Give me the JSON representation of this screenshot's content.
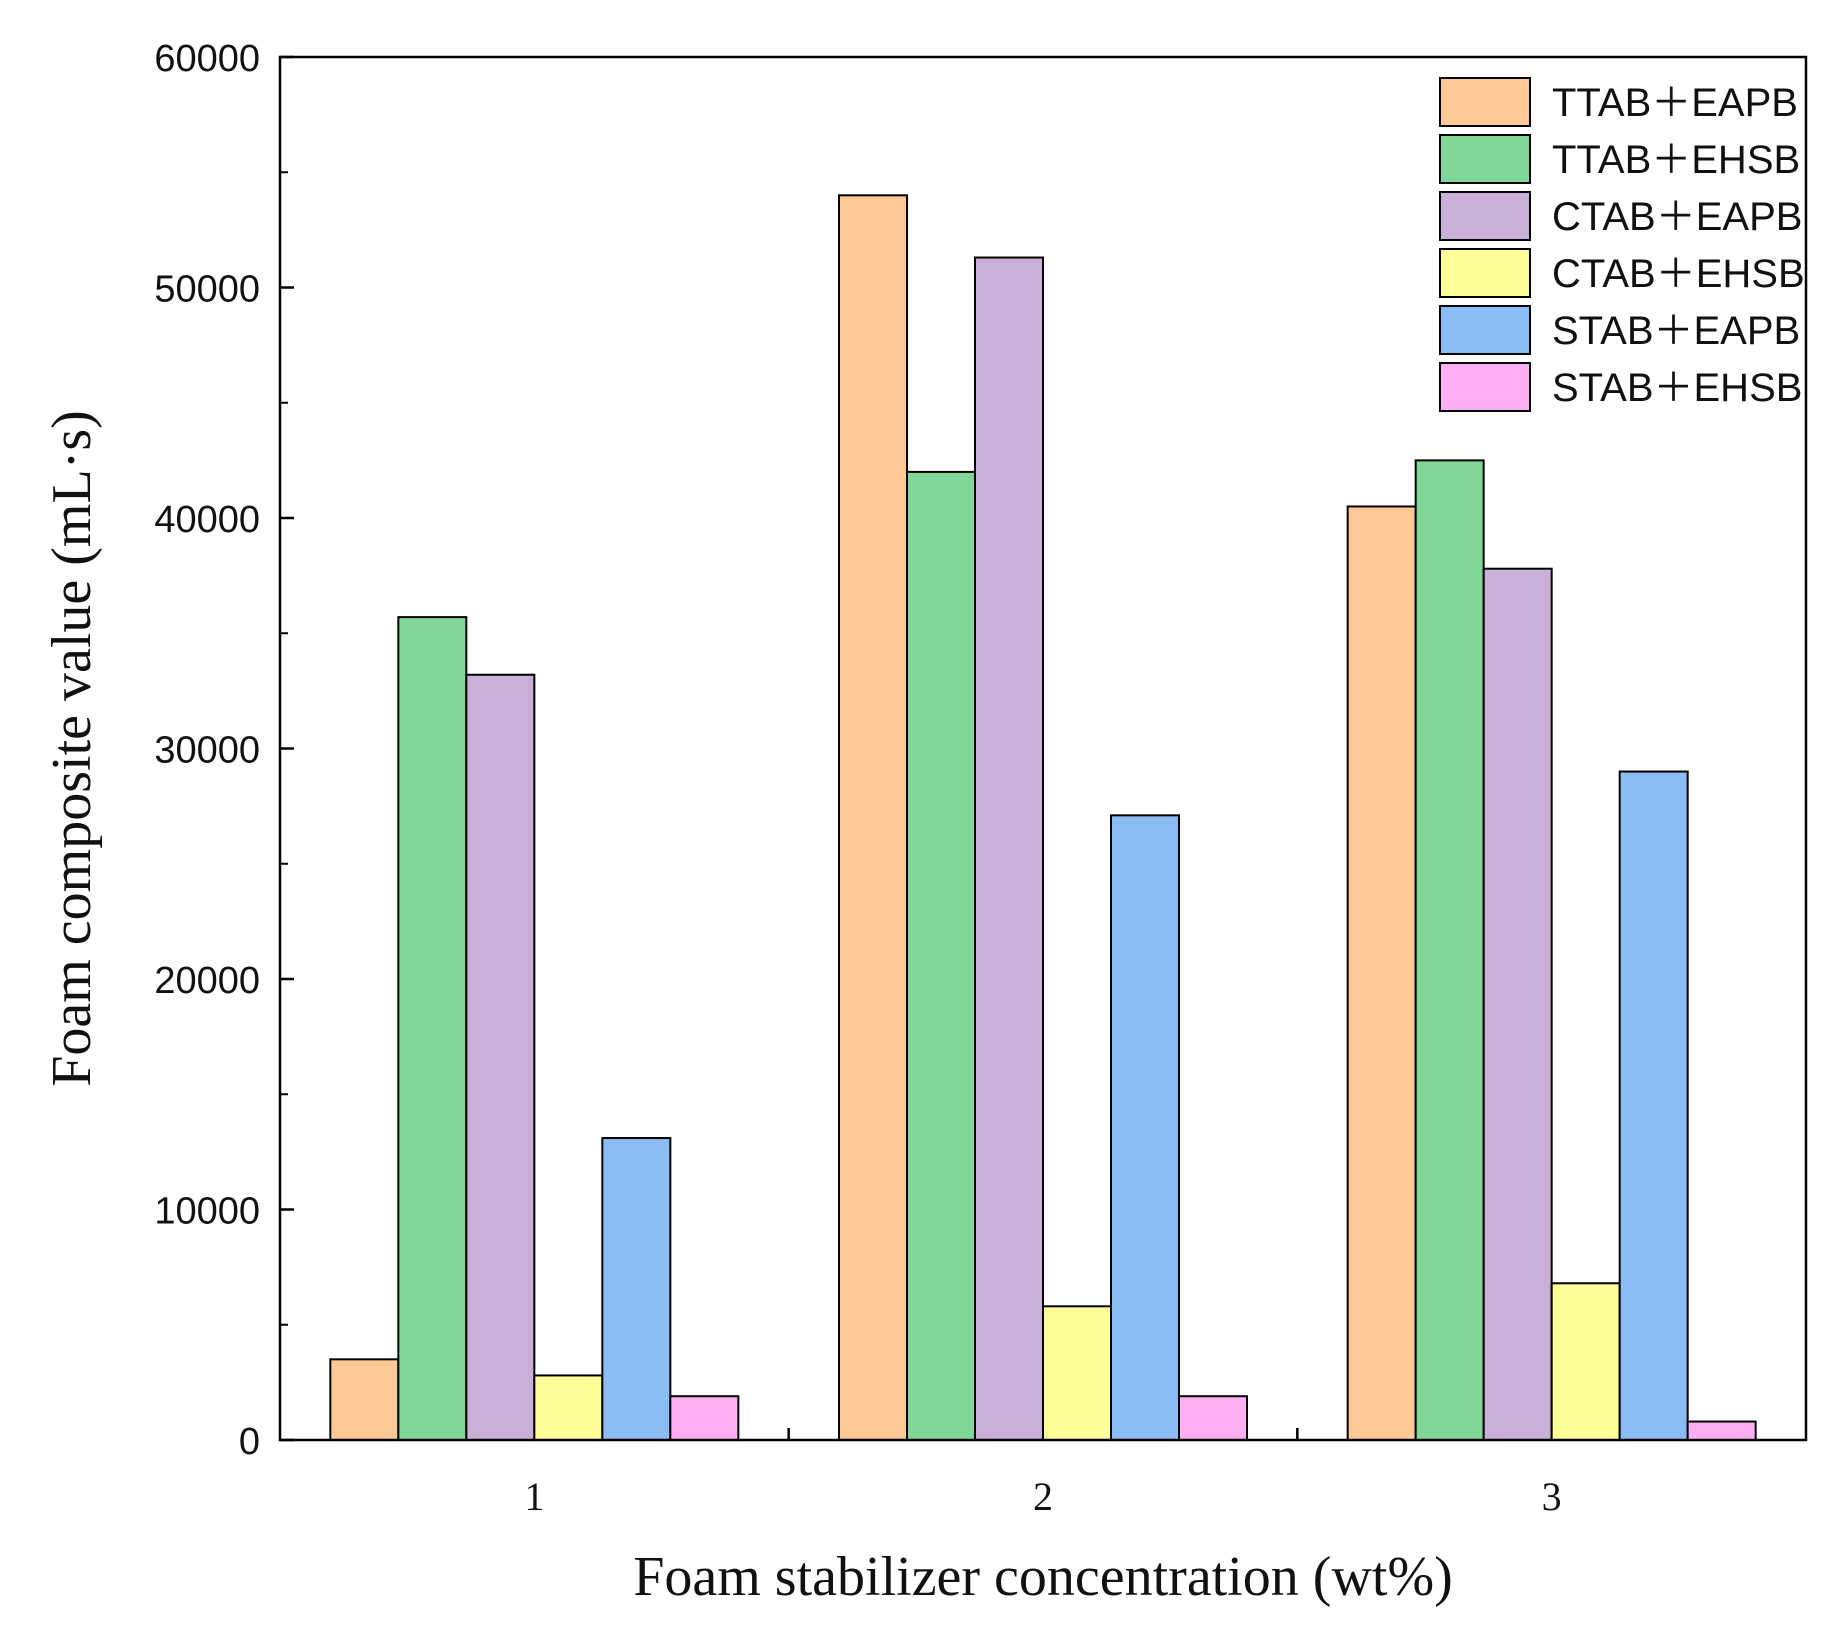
{
  "chart_data": {
    "type": "bar",
    "xlabel": "Foam stabilizer concentration (wt%)",
    "ylabel": "Foam composite value (mL·s)",
    "categories": [
      "1",
      "2",
      "3"
    ],
    "ylim": [
      0,
      60000
    ],
    "yticks": [
      0,
      10000,
      20000,
      30000,
      40000,
      50000,
      60000
    ],
    "grid": false,
    "legend_position": "top-right",
    "series": [
      {
        "name": "TTAB＋EAPB",
        "color": "#FFC894",
        "values": [
          3500,
          54000,
          40500
        ]
      },
      {
        "name": "TTAB＋EHSB",
        "color": "#80D898",
        "values": [
          35700,
          42000,
          42500
        ]
      },
      {
        "name": "CTAB＋EAPB",
        "color": "#C8B0D8",
        "values": [
          33200,
          51300,
          37800
        ]
      },
      {
        "name": "CTAB＋EHSB",
        "color": "#FFFF98",
        "values": [
          2800,
          5800,
          6800
        ]
      },
      {
        "name": "STAB＋EAPB",
        "color": "#8CBCF4",
        "values": [
          13100,
          27100,
          29000
        ]
      },
      {
        "name": "STAB＋EHSB",
        "color": "#FFB0F4",
        "values": [
          1900,
          1900,
          800
        ]
      }
    ]
  }
}
